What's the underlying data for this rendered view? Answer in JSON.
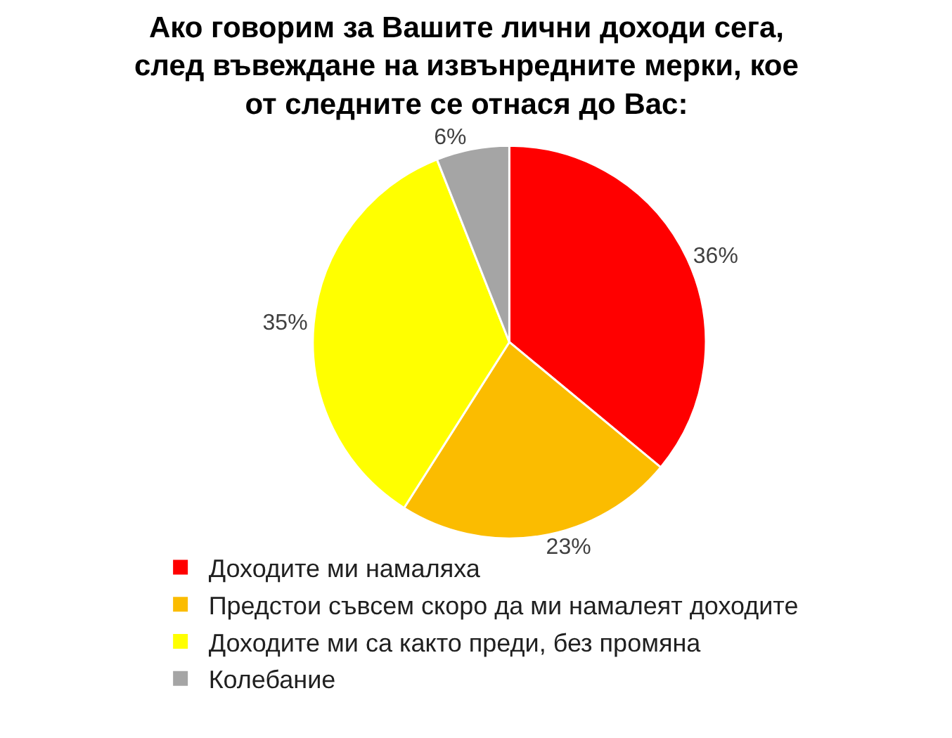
{
  "chart_data": {
    "type": "pie",
    "title": "Ако говорим за Вашите лични доходи сега, след въвеждане на извънредните мерки, кое от следните се отнася до Вас:",
    "categories": [
      "Доходите ми намаляха",
      "Предстои съвсем скоро да ми намалеят доходите",
      "Доходите ми са както преди, без промяна",
      "Колебание"
    ],
    "values": [
      36,
      23,
      35,
      6
    ],
    "value_labels": [
      "36%",
      "23%",
      "35%",
      "6%"
    ],
    "colors": [
      "#ff0000",
      "#fbbc00",
      "#ffff00",
      "#a5a5a5"
    ],
    "legend": "bottom left"
  }
}
